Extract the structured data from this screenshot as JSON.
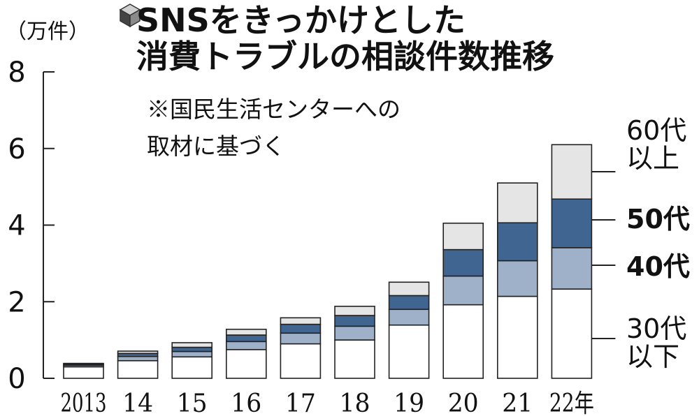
{
  "title_line1": "SNSをきっかけとした",
  "title_line2": "消費トラブルの相談件数推移",
  "unit": "（万件）",
  "note_line1": "※国民生活センターへの",
  "note_line2": "取材に基づく",
  "labels": {
    "age60_line1": "60代",
    "age60_line2": "以上",
    "age50": "50代",
    "age40": "40代",
    "age30_line1": "30代",
    "age30_line2": "以下"
  },
  "colors": {
    "age30_and_under": "#ffffff",
    "age40": "#9fb0c9",
    "age50": "#3f6590",
    "age60_and_over": "#e5e5e5",
    "outline": "#222222"
  },
  "chart_data": {
    "type": "bar",
    "stacked": true,
    "categories": [
      "2013",
      "14",
      "15",
      "16",
      "17",
      "18",
      "19",
      "20",
      "21",
      "22年"
    ],
    "series": [
      {
        "name": "30代以下",
        "values": [
          0.3,
          0.46,
          0.56,
          0.75,
          0.9,
          1.0,
          1.39,
          1.92,
          2.14,
          2.33
        ]
      },
      {
        "name": "40代",
        "values": [
          0.04,
          0.11,
          0.14,
          0.21,
          0.28,
          0.36,
          0.41,
          0.75,
          0.93,
          1.08
        ]
      },
      {
        "name": "50代",
        "values": [
          0.03,
          0.08,
          0.11,
          0.17,
          0.23,
          0.28,
          0.36,
          0.69,
          0.99,
          1.27
        ]
      },
      {
        "name": "60代以上",
        "values": [
          0.02,
          0.06,
          0.12,
          0.15,
          0.17,
          0.24,
          0.35,
          0.69,
          1.04,
          1.42
        ]
      }
    ],
    "ylim": [
      0,
      8
    ],
    "yticks": [
      0,
      2,
      4,
      6,
      8
    ],
    "ylabel": "（万件）",
    "legend": "right"
  }
}
